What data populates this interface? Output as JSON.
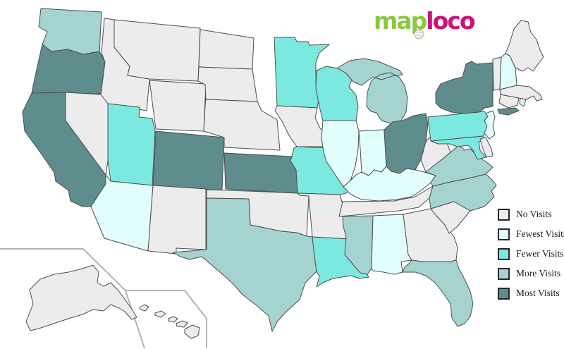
{
  "logo": {
    "part1": "map",
    "part2": "loco",
    "part1_color": "#8dc63f",
    "part2_color": "#c9127c",
    "globe_icon": "globe-in-p"
  },
  "legend": {
    "items": [
      {
        "key": "no",
        "label": "No Visits",
        "color": "#ececec"
      },
      {
        "key": "fewest",
        "label": "Fewest Visits",
        "color": "#e1fdfc"
      },
      {
        "key": "fewer",
        "label": "Fewer Visits",
        "color": "#7ce9e1"
      },
      {
        "key": "more",
        "label": "More Visits",
        "color": "#a4d3d0"
      },
      {
        "key": "most",
        "label": "Most Visits",
        "color": "#5f8c8c"
      }
    ]
  },
  "colors": {
    "state_border": "#4d4d4d",
    "inset_border": "#b3b3b3",
    "background": "#ffffff"
  },
  "map_data": {
    "type": "choropleth",
    "region": "United States",
    "states": [
      {
        "code": "WA",
        "name": "Washington",
        "level": "more"
      },
      {
        "code": "OR",
        "name": "Oregon",
        "level": "most"
      },
      {
        "code": "CA",
        "name": "California",
        "level": "most"
      },
      {
        "code": "NV",
        "name": "Nevada",
        "level": "no"
      },
      {
        "code": "ID",
        "name": "Idaho",
        "level": "no"
      },
      {
        "code": "MT",
        "name": "Montana",
        "level": "no"
      },
      {
        "code": "WY",
        "name": "Wyoming",
        "level": "no"
      },
      {
        "code": "UT",
        "name": "Utah",
        "level": "fewer"
      },
      {
        "code": "AZ",
        "name": "Arizona",
        "level": "fewest"
      },
      {
        "code": "CO",
        "name": "Colorado",
        "level": "most"
      },
      {
        "code": "NM",
        "name": "New Mexico",
        "level": "no"
      },
      {
        "code": "ND",
        "name": "North Dakota",
        "level": "no"
      },
      {
        "code": "SD",
        "name": "South Dakota",
        "level": "no"
      },
      {
        "code": "NE",
        "name": "Nebraska",
        "level": "no"
      },
      {
        "code": "KS",
        "name": "Kansas",
        "level": "most"
      },
      {
        "code": "OK",
        "name": "Oklahoma",
        "level": "no"
      },
      {
        "code": "TX",
        "name": "Texas",
        "level": "more"
      },
      {
        "code": "MN",
        "name": "Minnesota",
        "level": "fewer"
      },
      {
        "code": "IA",
        "name": "Iowa",
        "level": "no"
      },
      {
        "code": "MO",
        "name": "Missouri",
        "level": "fewer"
      },
      {
        "code": "AR",
        "name": "Arkansas",
        "level": "no"
      },
      {
        "code": "LA",
        "name": "Louisiana",
        "level": "fewer"
      },
      {
        "code": "WI",
        "name": "Wisconsin",
        "level": "fewer"
      },
      {
        "code": "MI",
        "name": "Michigan",
        "level": "more"
      },
      {
        "code": "IL",
        "name": "Illinois",
        "level": "fewest"
      },
      {
        "code": "IN",
        "name": "Indiana",
        "level": "fewest"
      },
      {
        "code": "OH",
        "name": "Ohio",
        "level": "most"
      },
      {
        "code": "KY",
        "name": "Kentucky",
        "level": "fewest"
      },
      {
        "code": "TN",
        "name": "Tennessee",
        "level": "no"
      },
      {
        "code": "MS",
        "name": "Mississippi",
        "level": "more"
      },
      {
        "code": "AL",
        "name": "Alabama",
        "level": "fewest"
      },
      {
        "code": "GA",
        "name": "Georgia",
        "level": "no"
      },
      {
        "code": "FL",
        "name": "Florida",
        "level": "more"
      },
      {
        "code": "SC",
        "name": "South Carolina",
        "level": "no"
      },
      {
        "code": "NC",
        "name": "North Carolina",
        "level": "more"
      },
      {
        "code": "VA",
        "name": "Virginia",
        "level": "more"
      },
      {
        "code": "WV",
        "name": "West Virginia",
        "level": "no"
      },
      {
        "code": "MD",
        "name": "Maryland",
        "level": "fewer"
      },
      {
        "code": "DE",
        "name": "Delaware",
        "level": "no"
      },
      {
        "code": "PA",
        "name": "Pennsylvania",
        "level": "fewer"
      },
      {
        "code": "NJ",
        "name": "New Jersey",
        "level": "fewest"
      },
      {
        "code": "NY",
        "name": "New York",
        "level": "most"
      },
      {
        "code": "CT",
        "name": "Connecticut",
        "level": "no"
      },
      {
        "code": "RI",
        "name": "Rhode Island",
        "level": "no"
      },
      {
        "code": "MA",
        "name": "Massachusetts",
        "level": "no"
      },
      {
        "code": "VT",
        "name": "Vermont",
        "level": "no"
      },
      {
        "code": "NH",
        "name": "New Hampshire",
        "level": "fewest"
      },
      {
        "code": "ME",
        "name": "Maine",
        "level": "no"
      },
      {
        "code": "AK",
        "name": "Alaska",
        "level": "no"
      },
      {
        "code": "HI",
        "name": "Hawaii",
        "level": "no"
      }
    ]
  }
}
